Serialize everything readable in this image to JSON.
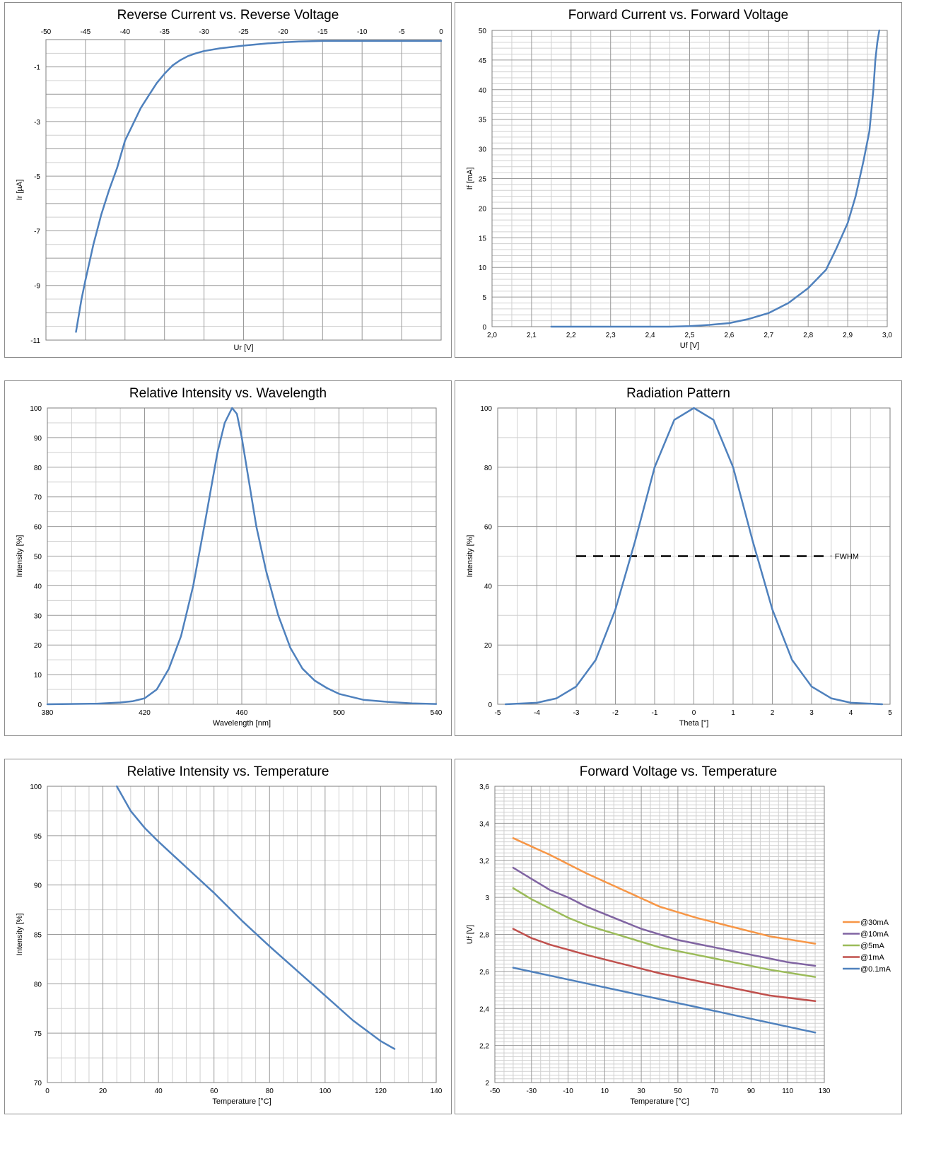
{
  "chart_data": [
    {
      "type": "line",
      "title": "Reverse Current vs. Reverse Voltage",
      "xlabel": "Ur [V]",
      "ylabel": "Ir [µA]",
      "xlim": [
        -50,
        0
      ],
      "ylim": [
        -11,
        0
      ],
      "xticks": [
        -50,
        -45,
        -40,
        -35,
        -30,
        -25,
        -20,
        -15,
        -10,
        -5,
        0
      ],
      "yticks": [
        -1,
        -3,
        -5,
        -7,
        -9,
        -11
      ],
      "tick_format": "int",
      "x_axis_position": "top",
      "grid": true,
      "series": [
        {
          "color": "#4f81bd",
          "x": [
            -46.2,
            -45.5,
            -45,
            -44,
            -43,
            -42,
            -41,
            -40,
            -39,
            -38,
            -37,
            -36,
            -35,
            -34,
            -33,
            -32,
            -31,
            -30,
            -28,
            -25,
            -22,
            -20,
            -18,
            -15,
            -10,
            -5,
            0
          ],
          "y": [
            -10.7,
            -9.5,
            -8.8,
            -7.5,
            -6.4,
            -5.5,
            -4.7,
            -3.7,
            -3.1,
            -2.5,
            -2.05,
            -1.6,
            -1.25,
            -0.95,
            -0.75,
            -0.6,
            -0.5,
            -0.42,
            -0.32,
            -0.22,
            -0.14,
            -0.1,
            -0.07,
            -0.05,
            -0.05,
            -0.05,
            -0.05
          ]
        }
      ]
    },
    {
      "type": "line",
      "title": "Forward Current vs. Forward Voltage",
      "xlabel": "Uf [V]",
      "ylabel": "If [mA]",
      "xlim": [
        2.0,
        3.0
      ],
      "ylim": [
        0,
        50
      ],
      "xticks": [
        "2,0",
        "2,1",
        "2,2",
        "2,3",
        "2,4",
        "2,5",
        "2,6",
        "2,7",
        "2,8",
        "2,9",
        "3,0"
      ],
      "yticks": [
        0,
        5,
        10,
        15,
        20,
        25,
        30,
        35,
        40,
        45,
        50
      ],
      "grid": true,
      "series": [
        {
          "color": "#4f81bd",
          "x": [
            2.15,
            2.3,
            2.45,
            2.5,
            2.55,
            2.6,
            2.65,
            2.7,
            2.75,
            2.8,
            2.845,
            2.87,
            2.9,
            2.92,
            2.94,
            2.955,
            2.965,
            2.97,
            2.975,
            2.98
          ],
          "y": [
            0,
            0,
            0,
            0.1,
            0.3,
            0.6,
            1.3,
            2.3,
            4.0,
            6.5,
            9.6,
            13,
            17.5,
            22,
            28,
            33,
            40,
            45,
            48,
            50
          ]
        }
      ]
    },
    {
      "type": "line",
      "title": "Relative Intensity vs. Wavelength",
      "xlabel": "Wavelength  [nm]",
      "ylabel": "Intensity [%]",
      "xlim": [
        380,
        540
      ],
      "ylim": [
        0,
        100
      ],
      "xticks": [
        380,
        420,
        460,
        500,
        540
      ],
      "yticks": [
        0,
        10,
        20,
        30,
        40,
        50,
        60,
        70,
        80,
        90,
        100
      ],
      "grid": true,
      "series": [
        {
          "color": "#4f81bd",
          "x": [
            380,
            400,
            410,
            415,
            420,
            425,
            430,
            435,
            440,
            445,
            450,
            453,
            456,
            458,
            460,
            463,
            466,
            470,
            475,
            480,
            485,
            490,
            495,
            500,
            510,
            520,
            530,
            540
          ],
          "y": [
            0,
            0.2,
            0.6,
            1,
            2,
            5,
            12,
            23,
            40,
            62,
            85,
            95,
            100,
            98,
            90,
            75,
            60,
            45,
            30,
            19,
            12,
            8,
            5.5,
            3.5,
            1.5,
            0.8,
            0.3,
            0.1
          ]
        }
      ]
    },
    {
      "type": "line",
      "title": "Radiation Pattern",
      "xlabel": "Theta  [°]",
      "ylabel": "Intensity [%]",
      "xlim": [
        -5,
        5
      ],
      "ylim": [
        0,
        100
      ],
      "xticks": [
        -5,
        -4,
        -3,
        -2,
        -1,
        0,
        1,
        2,
        3,
        4,
        5
      ],
      "yticks": [
        0,
        20,
        40,
        60,
        80,
        100
      ],
      "grid": true,
      "annotation": {
        "text": "FWHM",
        "y": 50,
        "x_start": -3,
        "x_end": 3.5
      },
      "series": [
        {
          "color": "#4f81bd",
          "x": [
            -4.8,
            -4,
            -3.5,
            -3,
            -2.5,
            -2,
            -1.5,
            -1,
            -0.5,
            0,
            0.5,
            1,
            1.5,
            2,
            2.5,
            3,
            3.5,
            4,
            4.8
          ],
          "y": [
            0,
            0.5,
            2,
            6,
            15,
            32,
            55,
            80,
            96,
            100,
            96,
            80,
            55,
            32,
            15,
            6,
            2,
            0.5,
            0
          ]
        }
      ]
    },
    {
      "type": "line",
      "title": "Relative Intensity vs. Temperature",
      "xlabel": "Temperature  [°C]",
      "ylabel": "Intensity [%]",
      "xlim": [
        0,
        140
      ],
      "ylim": [
        70,
        100
      ],
      "xticks": [
        0,
        20,
        40,
        60,
        80,
        100,
        120,
        140
      ],
      "yticks": [
        70,
        75,
        80,
        85,
        90,
        95,
        100
      ],
      "grid": true,
      "series": [
        {
          "color": "#4f81bd",
          "x": [
            25,
            30,
            35,
            40,
            45,
            50,
            55,
            60,
            70,
            80,
            90,
            100,
            110,
            120,
            125
          ],
          "y": [
            100,
            97.5,
            95.8,
            94.4,
            93.1,
            91.8,
            90.5,
            89.2,
            86.4,
            83.8,
            81.3,
            78.8,
            76.3,
            74.2,
            73.4
          ]
        }
      ]
    },
    {
      "type": "line",
      "title": "Forward Voltage vs. Temperature",
      "xlabel": "Temperature  [°C]",
      "ylabel": "Uf [V]",
      "xlim": [
        -50,
        130
      ],
      "ylim": [
        2,
        3.6
      ],
      "xticks": [
        -50,
        -30,
        -10,
        10,
        30,
        50,
        70,
        90,
        110,
        130
      ],
      "yticks": [
        "2",
        "2,2",
        "2,4",
        "2,6",
        "2,8",
        "3",
        "3,2",
        "3,4",
        "3,6"
      ],
      "grid": true,
      "legend": "right",
      "series": [
        {
          "name": "@30mA",
          "color": "#f79646",
          "x": [
            -40,
            -20,
            0,
            20,
            40,
            60,
            80,
            100,
            125
          ],
          "y": [
            3.32,
            3.23,
            3.13,
            3.04,
            2.95,
            2.89,
            2.84,
            2.79,
            2.75
          ]
        },
        {
          "name": "@10mA",
          "color": "#8064a2",
          "x": [
            -40,
            -30,
            -20,
            -10,
            0,
            10,
            20,
            30,
            40,
            50,
            60,
            70,
            80,
            90,
            100,
            110,
            125
          ],
          "y": [
            3.16,
            3.1,
            3.04,
            3.0,
            2.95,
            2.91,
            2.87,
            2.83,
            2.8,
            2.77,
            2.75,
            2.73,
            2.71,
            2.69,
            2.67,
            2.65,
            2.63
          ]
        },
        {
          "name": "@5mA",
          "color": "#9bbb59",
          "x": [
            -40,
            -30,
            -20,
            -10,
            0,
            10,
            20,
            30,
            40,
            60,
            80,
            100,
            125
          ],
          "y": [
            3.05,
            2.99,
            2.94,
            2.89,
            2.85,
            2.82,
            2.79,
            2.76,
            2.73,
            2.69,
            2.65,
            2.61,
            2.57
          ]
        },
        {
          "name": "@1mA",
          "color": "#c0504d",
          "x": [
            -40,
            -30,
            -20,
            0,
            20,
            40,
            60,
            80,
            100,
            125
          ],
          "y": [
            2.83,
            2.78,
            2.745,
            2.69,
            2.64,
            2.59,
            2.55,
            2.51,
            2.47,
            2.44
          ]
        },
        {
          "name": "@0.1mA",
          "color": "#4f81bd",
          "x": [
            -40,
            125
          ],
          "y": [
            2.62,
            2.27
          ]
        }
      ]
    }
  ]
}
